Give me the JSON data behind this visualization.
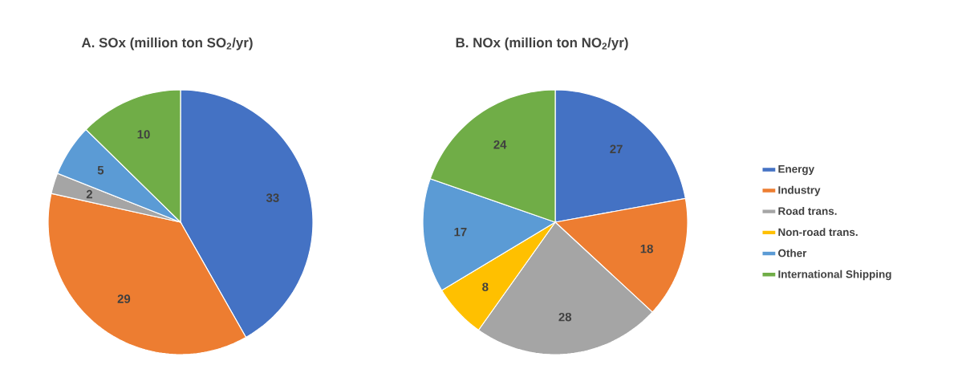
{
  "chart_data": [
    {
      "type": "pie",
      "title": "A. SOx (million ton SO$_{2}$/yr)",
      "categories": [
        null,
        null,
        null,
        null,
        null,
        null
      ],
      "values": [
        33,
        29,
        2,
        null,
        5,
        10
      ],
      "colors": [
        "#4472c4",
        "#ed7d31",
        "#a5a5a5",
        "#ffc000",
        "#5b9bd5",
        "#70ad47"
      ],
      "data_labels": true
    },
    {
      "type": "pie",
      "title": "B. NOx (million ton NO$_{2}$/yr)",
      "categories": [
        "Energy",
        "Industry",
        "Road trans.",
        "Non-road trans.",
        "Other",
        "International Shipping"
      ],
      "values": [
        27,
        18,
        28,
        8,
        17,
        24
      ],
      "colors": [
        "#4472c4",
        "#ed7d31",
        "#a5a5a5",
        "#ffc000",
        "#5b9bd5",
        "#70ad47"
      ],
      "data_labels": true,
      "legend": "right"
    }
  ]
}
